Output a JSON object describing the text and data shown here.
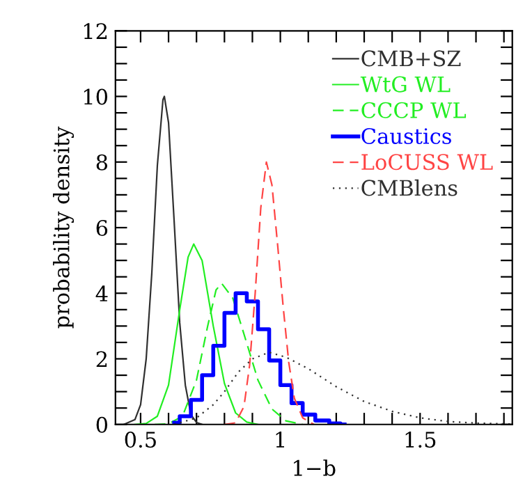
{
  "chart_data": {
    "type": "line",
    "xlabel": "1−b",
    "ylabel": "probability density",
    "xlim": [
      0.41,
      1.83
    ],
    "ylim": [
      0,
      12
    ],
    "xticks": [
      0.5,
      1,
      1.5,
      {
        "value": 0.6,
        "label": null
      },
      {
        "value": 0.7,
        "label": null
      },
      {
        "value": 0.8,
        "label": null
      },
      {
        "value": 0.9,
        "label": null
      },
      {
        "value": 1.1,
        "label": null
      },
      {
        "value": 1.2,
        "label": null
      },
      {
        "value": 1.3,
        "label": null
      },
      {
        "value": 1.4,
        "label": null
      },
      {
        "value": 1.6,
        "label": null
      },
      {
        "value": 1.7,
        "label": null
      },
      {
        "value": 1.8,
        "label": null
      }
    ],
    "yticks": [
      0,
      2,
      4,
      6,
      8,
      10,
      12,
      {
        "value": 0.5,
        "label": null
      },
      {
        "value": 1,
        "label": null
      },
      {
        "value": 1.5,
        "label": null
      },
      {
        "value": 2.5,
        "label": null
      },
      {
        "value": 3,
        "label": null
      },
      {
        "value": 3.5,
        "label": null
      },
      {
        "value": 4.5,
        "label": null
      },
      {
        "value": 5,
        "label": null
      },
      {
        "value": 5.5,
        "label": null
      },
      {
        "value": 6.5,
        "label": null
      },
      {
        "value": 7,
        "label": null
      },
      {
        "value": 7.5,
        "label": null
      },
      {
        "value": 8.5,
        "label": null
      },
      {
        "value": 9,
        "label": null
      },
      {
        "value": 9.5,
        "label": null
      },
      {
        "value": 10.5,
        "label": null
      },
      {
        "value": 11,
        "label": null
      },
      {
        "value": 11.5,
        "label": null
      }
    ],
    "legend": "top right",
    "marker": "none",
    "series": [
      {
        "name": "CMB+SZ",
        "color": "#303030",
        "line_style": "solid",
        "x": [
          0.44,
          0.48,
          0.5,
          0.52,
          0.54,
          0.56,
          0.58,
          0.585,
          0.6,
          0.62,
          0.64,
          0.66,
          0.68,
          0.7,
          0.72
        ],
        "values": [
          0,
          0.15,
          0.6,
          2.0,
          4.6,
          7.9,
          9.9,
          10,
          9.2,
          6.2,
          3.1,
          1.2,
          0.3,
          0.06,
          0
        ]
      },
      {
        "name": "WtG WL",
        "color": "#22ee22",
        "line_style": "solid",
        "x": [
          0.48,
          0.52,
          0.56,
          0.6,
          0.64,
          0.67,
          0.69,
          0.72,
          0.76,
          0.8,
          0.84,
          0.88,
          0.92
        ],
        "values": [
          0,
          0.03,
          0.25,
          1.2,
          3.5,
          5.1,
          5.5,
          5.0,
          3.0,
          1.25,
          0.35,
          0.07,
          0
        ]
      },
      {
        "name": "CCCP WL",
        "color": "#22ee22",
        "line_style": "dashed",
        "x": [
          0.55,
          0.6,
          0.65,
          0.7,
          0.74,
          0.77,
          0.79,
          0.83,
          0.87,
          0.92,
          0.97,
          1.02,
          1.08
        ],
        "values": [
          0,
          0.02,
          0.25,
          1.35,
          3.0,
          4.1,
          4.3,
          3.85,
          2.75,
          1.35,
          0.47,
          0.11,
          0
        ]
      },
      {
        "name": "Caustics",
        "color": "#0000ff",
        "type": "step",
        "line_style": "solid",
        "x": [
          0.62,
          0.66,
          0.7,
          0.74,
          0.78,
          0.82,
          0.86,
          0.9,
          0.94,
          0.98,
          1.02,
          1.06,
          1.1,
          1.15,
          1.2,
          1.23
        ],
        "values": [
          0.05,
          0.25,
          0.75,
          1.5,
          2.4,
          3.4,
          4.0,
          3.75,
          2.9,
          1.95,
          1.2,
          0.65,
          0.3,
          0.12,
          0.03,
          0
        ]
      },
      {
        "name": "LoCUSS WL",
        "color": "#ff4444",
        "line_style": "dashed",
        "x": [
          0.8,
          0.84,
          0.87,
          0.89,
          0.91,
          0.93,
          0.95,
          0.97,
          0.99,
          1.01,
          1.03,
          1.05,
          1.08,
          1.12
        ],
        "values": [
          0,
          0.05,
          0.55,
          1.8,
          4.0,
          6.6,
          8.0,
          7.3,
          5.5,
          3.6,
          1.9,
          0.8,
          0.2,
          0
        ]
      },
      {
        "name": "CMBlens",
        "color": "#303030",
        "line_style": "dotted",
        "x": [
          0.62,
          0.7,
          0.76,
          0.8,
          0.85,
          0.9,
          0.96,
          1.02,
          1.1,
          1.2,
          1.3,
          1.4,
          1.5,
          1.6,
          1.7,
          1.83
        ],
        "values": [
          0,
          0.2,
          0.6,
          1.0,
          1.6,
          2.0,
          2.2,
          2.05,
          1.7,
          1.15,
          0.7,
          0.4,
          0.2,
          0.09,
          0.04,
          0.01
        ]
      }
    ]
  }
}
